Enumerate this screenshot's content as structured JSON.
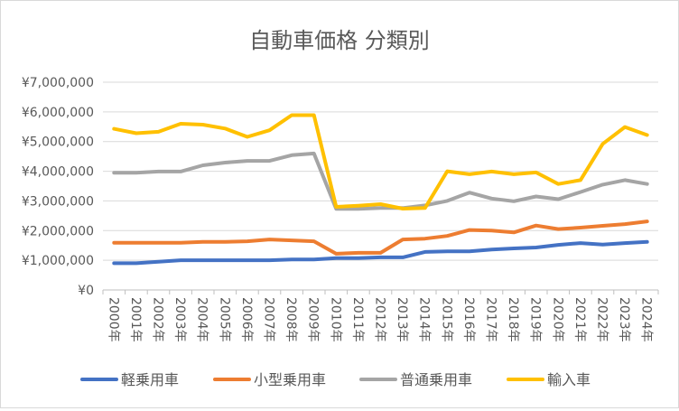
{
  "chart_data": {
    "type": "line",
    "title": "自動車価格 分類別",
    "xlabel": "",
    "ylabel": "",
    "ylim": [
      0,
      7000000
    ],
    "y_ticks": [
      "¥0",
      "¥1,000,000",
      "¥2,000,000",
      "¥3,000,000",
      "¥4,000,000",
      "¥5,000,000",
      "¥6,000,000",
      "¥7,000,000"
    ],
    "grid": true,
    "legend_position": "bottom",
    "categories": [
      "2000年",
      "2001年",
      "2002年",
      "2003年",
      "2004年",
      "2005年",
      "2006年",
      "2007年",
      "2008年",
      "2009年",
      "2010年",
      "2011年",
      "2012年",
      "2013年",
      "2014年",
      "2015年",
      "2016年",
      "2017年",
      "2018年",
      "2019年",
      "2020年",
      "2021年",
      "2022年",
      "2023年",
      "2024年"
    ],
    "series": [
      {
        "name": "軽乗用車",
        "color": "#4472c4",
        "values": [
          900000,
          900000,
          950000,
          1000000,
          1000000,
          1000000,
          1000000,
          1000000,
          1030000,
          1030000,
          1070000,
          1070000,
          1100000,
          1100000,
          1280000,
          1300000,
          1300000,
          1360000,
          1400000,
          1430000,
          1520000,
          1580000,
          1530000,
          1580000,
          1620000
        ]
      },
      {
        "name": "小型乗用車",
        "color": "#ed7d31",
        "values": [
          1590000,
          1590000,
          1590000,
          1590000,
          1620000,
          1620000,
          1640000,
          1700000,
          1670000,
          1640000,
          1220000,
          1250000,
          1250000,
          1700000,
          1730000,
          1820000,
          2020000,
          2000000,
          1940000,
          2170000,
          2050000,
          2100000,
          2160000,
          2220000,
          2310000
        ]
      },
      {
        "name": "普通乗用車",
        "color": "#a5a5a5",
        "values": [
          3950000,
          3950000,
          3990000,
          3990000,
          4200000,
          4290000,
          4350000,
          4350000,
          4540000,
          4600000,
          2730000,
          2730000,
          2760000,
          2760000,
          2850000,
          3000000,
          3280000,
          3080000,
          2990000,
          3150000,
          3060000,
          3300000,
          3550000,
          3700000,
          3570000
        ]
      },
      {
        "name": "輸入車",
        "color": "#ffc000",
        "values": [
          5430000,
          5280000,
          5330000,
          5600000,
          5570000,
          5440000,
          5160000,
          5380000,
          5890000,
          5890000,
          2800000,
          2840000,
          2890000,
          2740000,
          2760000,
          4000000,
          3900000,
          3990000,
          3900000,
          3960000,
          3570000,
          3700000,
          4920000,
          5490000,
          5220000
        ]
      }
    ]
  }
}
